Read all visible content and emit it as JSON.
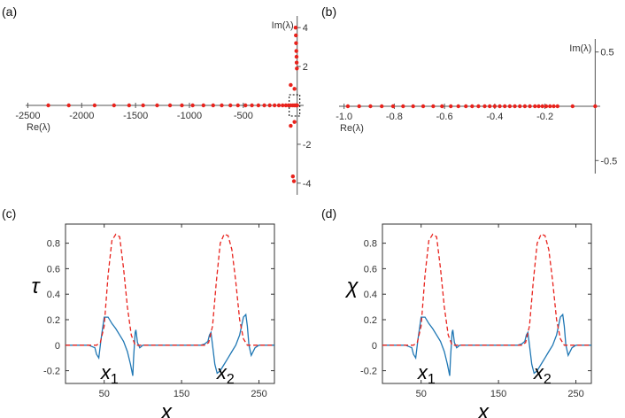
{
  "colors": {
    "eigen_point": "#e8231d",
    "tau_solid": "#1f77b4",
    "dashed": "#e8231d",
    "axis": "#555555",
    "box": "#000000"
  },
  "chart_data": [
    {
      "panel": "(a)",
      "type": "scatter",
      "xlabel": "Re(λ)",
      "ylabel": "Im(λ)",
      "xlim": [
        -2520,
        60
      ],
      "ylim": [
        -4.6,
        4.6
      ],
      "xticks": [
        -2500,
        -2000,
        -1500,
        -1000,
        -500
      ],
      "xtick_labels": [
        "-2500",
        "-2000",
        "-1500",
        "-1000",
        "-500"
      ],
      "yticks": [
        4,
        2,
        -2,
        -4
      ],
      "ytick_labels": [
        "4",
        "2",
        "-2",
        "-4"
      ],
      "zoom_box": true,
      "points": [
        [
          -2310,
          0
        ],
        [
          -2120,
          0
        ],
        [
          -1880,
          0
        ],
        [
          -1700,
          0
        ],
        [
          -1560,
          0
        ],
        [
          -1430,
          0
        ],
        [
          -1300,
          0
        ],
        [
          -1180,
          0
        ],
        [
          -1070,
          0
        ],
        [
          -970,
          0
        ],
        [
          -870,
          0
        ],
        [
          -780,
          0
        ],
        [
          -700,
          0
        ],
        [
          -620,
          0
        ],
        [
          -550,
          0
        ],
        [
          -480,
          0
        ],
        [
          -420,
          0
        ],
        [
          -360,
          0
        ],
        [
          -305,
          0
        ],
        [
          -255,
          0
        ],
        [
          -210,
          0
        ],
        [
          -170,
          0
        ],
        [
          -135,
          0
        ],
        [
          -105,
          0
        ],
        [
          -80,
          0
        ],
        [
          -60,
          0
        ],
        [
          -40,
          0
        ],
        [
          -25,
          0
        ],
        [
          -12,
          0
        ],
        [
          -5,
          0
        ],
        [
          -1,
          0
        ],
        [
          0,
          0
        ],
        [
          -15,
          4.0
        ],
        [
          -12,
          3.6
        ],
        [
          -10,
          3.2
        ],
        [
          -8,
          2.8
        ],
        [
          -6,
          2.5
        ],
        [
          -5,
          2.2
        ],
        [
          -3,
          1.9
        ],
        [
          -60,
          1.05
        ],
        [
          -25,
          0.85
        ],
        [
          -60,
          -1.05
        ],
        [
          -25,
          -0.85
        ],
        [
          -40,
          -3.65
        ],
        [
          -30,
          -3.9
        ]
      ]
    },
    {
      "panel": "(b)",
      "type": "scatter",
      "xlabel": "Re(λ)",
      "ylabel": "Im(λ)",
      "xlim": [
        -1.02,
        0.02
      ],
      "ylim": [
        -0.62,
        0.62
      ],
      "xticks": [
        -1.0,
        -0.8,
        -0.6,
        -0.4,
        -0.2
      ],
      "xtick_labels": [
        "-1.0",
        "-0.8",
        "-0.6",
        "-0.4",
        "-0.2"
      ],
      "yticks": [
        0.5,
        -0.5
      ],
      "ytick_labels": [
        "0.5",
        "-0.5"
      ],
      "points": [
        [
          -0.985,
          0
        ],
        [
          -0.94,
          0
        ],
        [
          -0.895,
          0
        ],
        [
          -0.85,
          0
        ],
        [
          -0.805,
          0
        ],
        [
          -0.765,
          0
        ],
        [
          -0.725,
          0
        ],
        [
          -0.685,
          0
        ],
        [
          -0.645,
          0
        ],
        [
          -0.61,
          0
        ],
        [
          -0.575,
          0
        ],
        [
          -0.545,
          0
        ],
        [
          -0.515,
          0
        ],
        [
          -0.49,
          0
        ],
        [
          -0.465,
          0
        ],
        [
          -0.44,
          0
        ],
        [
          -0.42,
          0
        ],
        [
          -0.4,
          0
        ],
        [
          -0.38,
          0
        ],
        [
          -0.36,
          0
        ],
        [
          -0.34,
          0
        ],
        [
          -0.32,
          0
        ],
        [
          -0.3,
          0
        ],
        [
          -0.28,
          0
        ],
        [
          -0.26,
          0
        ],
        [
          -0.24,
          0
        ],
        [
          -0.225,
          0
        ],
        [
          -0.21,
          0
        ],
        [
          -0.195,
          0
        ],
        [
          -0.18,
          0
        ],
        [
          -0.165,
          0
        ],
        [
          -0.15,
          0
        ],
        [
          -0.09,
          0
        ],
        [
          0.0,
          0
        ]
      ]
    },
    {
      "panel": "(c)",
      "type": "line",
      "ylabel": "τ",
      "xlabel": "x",
      "xlim": [
        0,
        270
      ],
      "ylim": [
        -0.3,
        0.95
      ],
      "xticks": [
        50,
        150,
        250
      ],
      "xtick_labels": [
        "50",
        "150",
        "250"
      ],
      "yticks": [
        0.8,
        0.6,
        0.4,
        0.2,
        0,
        -0.2
      ],
      "ytick_labels": [
        "0.8",
        "0.6",
        "0.4",
        "0.2",
        "0",
        "-0.2"
      ],
      "annotations": [
        {
          "text": "x",
          "sub": "1",
          "x": 57,
          "y": -0.21
        },
        {
          "text": "x",
          "sub": "2",
          "x": 207,
          "y": -0.21
        }
      ],
      "series": [
        {
          "style": "solid",
          "x": [
            0,
            30,
            38,
            40,
            43,
            46,
            50,
            55,
            60,
            65,
            70,
            75,
            80,
            84,
            87,
            88,
            90,
            91,
            93,
            96,
            100,
            120,
            150,
            175,
            180,
            184,
            186,
            188,
            190,
            193,
            196,
            200,
            205,
            210,
            215,
            220,
            225,
            230,
            233,
            235,
            237,
            240,
            245,
            250,
            270
          ],
          "y": [
            0,
            0,
            -0.02,
            -0.07,
            -0.1,
            0.05,
            0.22,
            0.22,
            0.17,
            0.13,
            0.08,
            0.03,
            -0.05,
            -0.15,
            -0.24,
            -0.1,
            0.1,
            0.12,
            0.02,
            -0.02,
            0,
            0,
            0,
            0,
            0.01,
            0.03,
            0.08,
            0.1,
            0.0,
            -0.15,
            -0.22,
            -0.2,
            -0.15,
            -0.1,
            -0.05,
            0.0,
            0.08,
            0.22,
            0.24,
            0.15,
            0.0,
            -0.08,
            -0.02,
            0,
            0
          ]
        },
        {
          "style": "dashed",
          "x": [
            0,
            40,
            45,
            50,
            55,
            60,
            65,
            70,
            75,
            80,
            85,
            90,
            95,
            130,
            180,
            185,
            190,
            195,
            200,
            205,
            210,
            215,
            220,
            225,
            230,
            235,
            240,
            270
          ],
          "y": [
            0,
            0,
            0.02,
            0.15,
            0.55,
            0.82,
            0.87,
            0.85,
            0.6,
            0.3,
            0.08,
            0.0,
            0,
            0,
            0,
            0.02,
            0.15,
            0.5,
            0.8,
            0.87,
            0.86,
            0.75,
            0.5,
            0.2,
            0.05,
            0.0,
            0,
            0
          ]
        }
      ]
    },
    {
      "panel": "(d)",
      "type": "line",
      "ylabel": "χ",
      "xlabel": "x",
      "xlim": [
        0,
        270
      ],
      "ylim": [
        -0.3,
        0.95
      ],
      "xticks": [
        50,
        150,
        250
      ],
      "xtick_labels": [
        "50",
        "150",
        "250"
      ],
      "yticks": [
        0.8,
        0.6,
        0.4,
        0.2,
        0,
        -0.2
      ],
      "ytick_labels": [
        "0.8",
        "0.6",
        "0.4",
        "0.2",
        "0",
        "-0.2"
      ],
      "annotations": [
        {
          "text": "x",
          "sub": "1",
          "x": 57,
          "y": -0.21
        },
        {
          "text": "x",
          "sub": "2",
          "x": 207,
          "y": -0.21
        }
      ],
      "series": [
        {
          "style": "solid",
          "x": [
            0,
            30,
            38,
            40,
            43,
            46,
            50,
            55,
            60,
            65,
            70,
            75,
            80,
            84,
            87,
            88,
            90,
            91,
            93,
            96,
            100,
            120,
            150,
            175,
            180,
            184,
            186,
            188,
            190,
            193,
            196,
            200,
            205,
            210,
            215,
            220,
            225,
            230,
            233,
            235,
            237,
            240,
            245,
            250,
            270
          ],
          "y": [
            0,
            0,
            -0.02,
            -0.07,
            -0.1,
            0.05,
            0.22,
            0.22,
            0.17,
            0.13,
            0.08,
            0.03,
            -0.05,
            -0.15,
            -0.24,
            -0.1,
            0.1,
            0.12,
            0.02,
            -0.02,
            0,
            0,
            0,
            0,
            0.01,
            0.03,
            0.08,
            0.1,
            0.0,
            -0.15,
            -0.22,
            -0.2,
            -0.15,
            -0.1,
            -0.05,
            0.0,
            0.08,
            0.22,
            0.24,
            0.15,
            0.0,
            -0.08,
            -0.02,
            0,
            0
          ]
        },
        {
          "style": "dashed",
          "x": [
            0,
            40,
            45,
            50,
            55,
            60,
            65,
            70,
            75,
            80,
            85,
            90,
            95,
            130,
            180,
            185,
            190,
            195,
            200,
            205,
            210,
            215,
            220,
            225,
            230,
            235,
            240,
            270
          ],
          "y": [
            0,
            0,
            0.02,
            0.15,
            0.55,
            0.82,
            0.87,
            0.85,
            0.6,
            0.3,
            0.08,
            0.0,
            0,
            0,
            0,
            0.02,
            0.15,
            0.5,
            0.8,
            0.87,
            0.86,
            0.75,
            0.5,
            0.2,
            0.05,
            0.0,
            0,
            0
          ]
        }
      ]
    }
  ]
}
